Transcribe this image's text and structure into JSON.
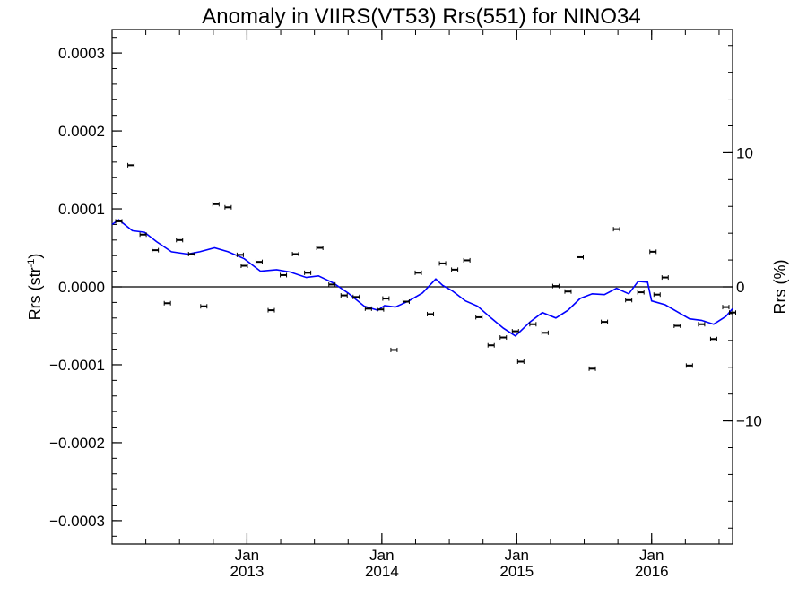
{
  "chart_data": {
    "type": "scatter",
    "title": "Anomaly in VIIRS(VT53) Rrs(551) for NINO34",
    "ylabel_left": "Rrs (str",
    "ylabel_left_sup": "-1",
    "ylabel_left_end": ")",
    "ylabel_right": "Rrs (%)",
    "ylim": [
      -0.00033,
      0.00033
    ],
    "xlim": [
      2012.0,
      2016.6
    ],
    "y_ticks": [
      {
        "v": 0.0003,
        "label": "0.0003"
      },
      {
        "v": 0.0002,
        "label": "0.0002"
      },
      {
        "v": 0.0001,
        "label": "0.0001"
      },
      {
        "v": 0.0,
        "label": "0.0000"
      },
      {
        "v": -0.0001,
        "label": "−0.0001"
      },
      {
        "v": -0.0002,
        "label": "−0.0002"
      },
      {
        "v": -0.0003,
        "label": "−0.0003"
      }
    ],
    "y_minor_step": 2e-05,
    "right_axis": {
      "scale_per_percent": 1.72e-05,
      "ticks": [
        {
          "v": 10,
          "label": "10"
        },
        {
          "v": 0,
          "label": "0"
        },
        {
          "v": -10,
          "label": "−10"
        }
      ],
      "minor_step": 2
    },
    "x_ticks": [
      {
        "v": 2013.0,
        "month": "Jan",
        "year": "2013"
      },
      {
        "v": 2014.0,
        "month": "Jan",
        "year": "2014"
      },
      {
        "v": 2015.0,
        "month": "Jan",
        "year": "2015"
      },
      {
        "v": 2016.0,
        "month": "Jan",
        "year": "2016"
      }
    ],
    "x_minor_step": 0.25,
    "zero_line": true,
    "grid": false,
    "series": [
      {
        "kind": "points-with-errorbars",
        "color": "#000000",
        "points": [
          {
            "x": 2012.05,
            "y": 8.4e-05
          },
          {
            "x": 2012.14,
            "y": 0.000156
          },
          {
            "x": 2012.23,
            "y": 6.7e-05
          },
          {
            "x": 2012.32,
            "y": 4.7e-05
          },
          {
            "x": 2012.41,
            "y": -2.1e-05
          },
          {
            "x": 2012.5,
            "y": 6e-05
          },
          {
            "x": 2012.59,
            "y": 4.2e-05
          },
          {
            "x": 2012.68,
            "y": -2.5e-05
          },
          {
            "x": 2012.77,
            "y": 0.000106
          },
          {
            "x": 2012.86,
            "y": 0.000102
          },
          {
            "x": 2012.95,
            "y": 4.1e-05
          },
          {
            "x": 2012.98,
            "y": 2.7e-05
          },
          {
            "x": 2013.09,
            "y": 3.2e-05
          },
          {
            "x": 2013.18,
            "y": -3e-05
          },
          {
            "x": 2013.27,
            "y": 1.5e-05
          },
          {
            "x": 2013.36,
            "y": 4.2e-05
          },
          {
            "x": 2013.45,
            "y": 1.8e-05
          },
          {
            "x": 2013.54,
            "y": 5e-05
          },
          {
            "x": 2013.63,
            "y": 3e-06
          },
          {
            "x": 2013.72,
            "y": -1.1e-05
          },
          {
            "x": 2013.81,
            "y": -1.3e-05
          },
          {
            "x": 2013.9,
            "y": -2.8e-05
          },
          {
            "x": 2013.99,
            "y": -2.9e-05
          },
          {
            "x": 2014.03,
            "y": -1.5e-05
          },
          {
            "x": 2014.09,
            "y": -8.1e-05
          },
          {
            "x": 2014.18,
            "y": -1.9e-05
          },
          {
            "x": 2014.27,
            "y": 1.8e-05
          },
          {
            "x": 2014.36,
            "y": -3.5e-05
          },
          {
            "x": 2014.45,
            "y": 3e-05
          },
          {
            "x": 2014.54,
            "y": 2.2e-05
          },
          {
            "x": 2014.63,
            "y": 3.4e-05
          },
          {
            "x": 2014.72,
            "y": -3.9e-05
          },
          {
            "x": 2014.81,
            "y": -7.5e-05
          },
          {
            "x": 2014.9,
            "y": -6.5e-05
          },
          {
            "x": 2014.99,
            "y": -5.7e-05
          },
          {
            "x": 2015.03,
            "y": -9.6e-05
          },
          {
            "x": 2015.12,
            "y": -4.8e-05
          },
          {
            "x": 2015.21,
            "y": -5.9e-05
          },
          {
            "x": 2015.29,
            "y": 1e-06
          },
          {
            "x": 2015.38,
            "y": -6e-06
          },
          {
            "x": 2015.47,
            "y": 3.8e-05
          },
          {
            "x": 2015.56,
            "y": -0.000105
          },
          {
            "x": 2015.65,
            "y": -4.5e-05
          },
          {
            "x": 2015.74,
            "y": 7.4e-05
          },
          {
            "x": 2015.83,
            "y": -1.7e-05
          },
          {
            "x": 2015.92,
            "y": -7e-06
          },
          {
            "x": 2016.01,
            "y": 4.5e-05
          },
          {
            "x": 2016.04,
            "y": -1e-05
          },
          {
            "x": 2016.1,
            "y": 1.2e-05
          },
          {
            "x": 2016.19,
            "y": -5e-05
          },
          {
            "x": 2016.28,
            "y": -0.000101
          },
          {
            "x": 2016.37,
            "y": -4.8e-05
          },
          {
            "x": 2016.46,
            "y": -6.7e-05
          },
          {
            "x": 2016.55,
            "y": -2.6e-05
          },
          {
            "x": 2016.6,
            "y": -3.3e-05
          }
        ]
      },
      {
        "kind": "line",
        "color": "#0000ff",
        "points": [
          {
            "x": 2012.0,
            "y": 8e-05
          },
          {
            "x": 2012.05,
            "y": 8.6e-05
          },
          {
            "x": 2012.15,
            "y": 7.2e-05
          },
          {
            "x": 2012.24,
            "y": 7e-05
          },
          {
            "x": 2012.33,
            "y": 5.8e-05
          },
          {
            "x": 2012.44,
            "y": 4.5e-05
          },
          {
            "x": 2012.56,
            "y": 4.2e-05
          },
          {
            "x": 2012.65,
            "y": 4.5e-05
          },
          {
            "x": 2012.76,
            "y": 5e-05
          },
          {
            "x": 2012.86,
            "y": 4.5e-05
          },
          {
            "x": 2012.98,
            "y": 3.6e-05
          },
          {
            "x": 2013.1,
            "y": 2e-05
          },
          {
            "x": 2013.22,
            "y": 2.2e-05
          },
          {
            "x": 2013.32,
            "y": 1.9e-05
          },
          {
            "x": 2013.44,
            "y": 1.2e-05
          },
          {
            "x": 2013.53,
            "y": 1.4e-05
          },
          {
            "x": 2013.64,
            "y": 5e-06
          },
          {
            "x": 2013.75,
            "y": -8e-06
          },
          {
            "x": 2013.87,
            "y": -2.5e-05
          },
          {
            "x": 2013.97,
            "y": -3e-05
          },
          {
            "x": 2014.02,
            "y": -2.4e-05
          },
          {
            "x": 2014.1,
            "y": -2.6e-05
          },
          {
            "x": 2014.2,
            "y": -1.8e-05
          },
          {
            "x": 2014.3,
            "y": -8e-06
          },
          {
            "x": 2014.4,
            "y": 1e-05
          },
          {
            "x": 2014.45,
            "y": 2e-06
          },
          {
            "x": 2014.52,
            "y": -5e-06
          },
          {
            "x": 2014.62,
            "y": -1.8e-05
          },
          {
            "x": 2014.71,
            "y": -2.5e-05
          },
          {
            "x": 2014.81,
            "y": -4e-05
          },
          {
            "x": 2014.9,
            "y": -5.3e-05
          },
          {
            "x": 2014.99,
            "y": -6.3e-05
          },
          {
            "x": 2015.1,
            "y": -4.5e-05
          },
          {
            "x": 2015.19,
            "y": -3.3e-05
          },
          {
            "x": 2015.29,
            "y": -4e-05
          },
          {
            "x": 2015.38,
            "y": -3e-05
          },
          {
            "x": 2015.47,
            "y": -1.5e-05
          },
          {
            "x": 2015.56,
            "y": -9e-06
          },
          {
            "x": 2015.65,
            "y": -1e-05
          },
          {
            "x": 2015.74,
            "y": -2e-06
          },
          {
            "x": 2015.83,
            "y": -9e-06
          },
          {
            "x": 2015.9,
            "y": 7e-06
          },
          {
            "x": 2015.97,
            "y": 6e-06
          },
          {
            "x": 2016.0,
            "y": -1.8e-05
          },
          {
            "x": 2016.1,
            "y": -2.3e-05
          },
          {
            "x": 2016.19,
            "y": -3.2e-05
          },
          {
            "x": 2016.28,
            "y": -4.1e-05
          },
          {
            "x": 2016.37,
            "y": -4.3e-05
          },
          {
            "x": 2016.46,
            "y": -4.8e-05
          },
          {
            "x": 2016.55,
            "y": -3.8e-05
          },
          {
            "x": 2016.6,
            "y": -2.8e-05
          }
        ]
      }
    ]
  }
}
